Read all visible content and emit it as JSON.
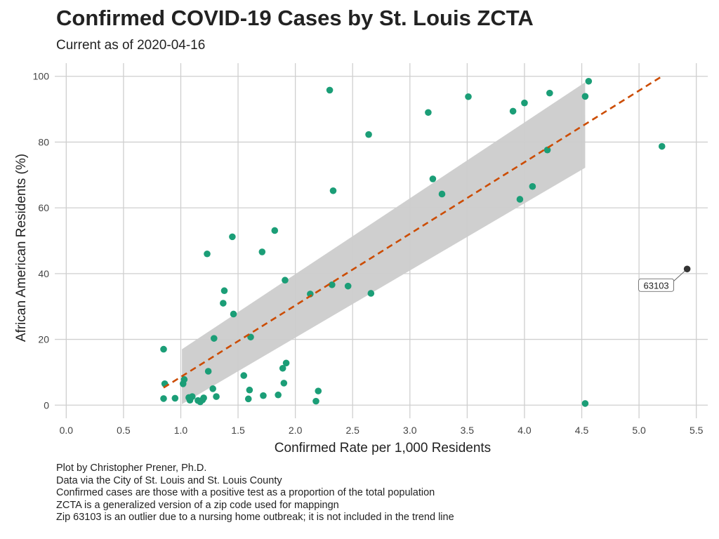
{
  "title": "Confirmed COVID-19 Cases by St. Louis ZCTA",
  "subtitle": "Current as of 2020-04-16",
  "caption_lines": [
    "Plot by Christopher Prener, Ph.D.",
    "Data via the City of St. Louis and St. Louis County",
    "Confirmed cases are those with a positive test as a proportion of the total population",
    "ZCTA is a generalized version of a zip code used for mappingn",
    "Zip 63103 is an outlier due to a nursing home outbreak; it is not included in the trend line"
  ],
  "colors": {
    "points": "#1b9e77",
    "outlier": "#333333",
    "trend": "#cc4c02",
    "band": "#cccccc",
    "grid": "#cfcfcf"
  },
  "chart_data": {
    "type": "scatter",
    "xlabel": "Confirmed Rate per 1,000 Residents",
    "ylabel": "African American Residents (%)",
    "xlim": [
      -0.1,
      5.6
    ],
    "ylim": [
      -4,
      104
    ],
    "xticks": [
      0.0,
      0.5,
      1.0,
      1.5,
      2.0,
      2.5,
      3.0,
      3.5,
      4.0,
      4.5,
      5.0,
      5.5
    ],
    "xtick_labels": [
      "0.0",
      "0.5",
      "1.0",
      "1.5",
      "2.0",
      "2.5",
      "3.0",
      "3.5",
      "4.0",
      "4.5",
      "5.0",
      "5.5"
    ],
    "yticks": [
      0,
      20,
      40,
      60,
      80,
      100
    ],
    "ytick_labels": [
      "0",
      "20",
      "40",
      "60",
      "80",
      "100"
    ],
    "grid": true,
    "points": [
      {
        "x": 0.85,
        "y": 17.0
      },
      {
        "x": 0.86,
        "y": 6.5
      },
      {
        "x": 0.85,
        "y": 2.0
      },
      {
        "x": 0.95,
        "y": 2.1
      },
      {
        "x": 1.02,
        "y": 6.5
      },
      {
        "x": 1.03,
        "y": 7.8
      },
      {
        "x": 1.07,
        "y": 2.3
      },
      {
        "x": 1.08,
        "y": 1.5
      },
      {
        "x": 1.1,
        "y": 2.6
      },
      {
        "x": 1.15,
        "y": 1.4
      },
      {
        "x": 1.17,
        "y": 1.0
      },
      {
        "x": 1.19,
        "y": 1.6
      },
      {
        "x": 1.2,
        "y": 2.2
      },
      {
        "x": 1.23,
        "y": 46.0
      },
      {
        "x": 1.24,
        "y": 10.3
      },
      {
        "x": 1.28,
        "y": 5.0
      },
      {
        "x": 1.29,
        "y": 20.3
      },
      {
        "x": 1.31,
        "y": 2.6
      },
      {
        "x": 1.37,
        "y": 31.0
      },
      {
        "x": 1.38,
        "y": 34.8
      },
      {
        "x": 1.45,
        "y": 51.2
      },
      {
        "x": 1.46,
        "y": 27.7
      },
      {
        "x": 1.55,
        "y": 9.0
      },
      {
        "x": 1.59,
        "y": 1.9
      },
      {
        "x": 1.6,
        "y": 4.6
      },
      {
        "x": 1.61,
        "y": 20.7
      },
      {
        "x": 1.71,
        "y": 46.6
      },
      {
        "x": 1.72,
        "y": 2.9
      },
      {
        "x": 1.82,
        "y": 53.1
      },
      {
        "x": 1.85,
        "y": 3.1
      },
      {
        "x": 1.89,
        "y": 11.2
      },
      {
        "x": 1.9,
        "y": 6.7
      },
      {
        "x": 1.91,
        "y": 38.0
      },
      {
        "x": 1.92,
        "y": 12.8
      },
      {
        "x": 2.13,
        "y": 33.8
      },
      {
        "x": 2.18,
        "y": 1.2
      },
      {
        "x": 2.2,
        "y": 4.3
      },
      {
        "x": 2.3,
        "y": 95.8
      },
      {
        "x": 2.32,
        "y": 36.6
      },
      {
        "x": 2.33,
        "y": 65.2
      },
      {
        "x": 2.46,
        "y": 36.2
      },
      {
        "x": 2.64,
        "y": 82.3
      },
      {
        "x": 2.66,
        "y": 34.0
      },
      {
        "x": 3.16,
        "y": 89.0
      },
      {
        "x": 3.2,
        "y": 68.8
      },
      {
        "x": 3.28,
        "y": 64.2
      },
      {
        "x": 3.51,
        "y": 93.8
      },
      {
        "x": 3.9,
        "y": 89.4
      },
      {
        "x": 3.96,
        "y": 62.6
      },
      {
        "x": 4.0,
        "y": 91.9
      },
      {
        "x": 4.07,
        "y": 66.5
      },
      {
        "x": 4.2,
        "y": 77.6
      },
      {
        "x": 4.22,
        "y": 94.9
      },
      {
        "x": 4.53,
        "y": 93.9
      },
      {
        "x": 4.53,
        "y": 0.5
      },
      {
        "x": 4.56,
        "y": 98.5
      },
      {
        "x": 5.2,
        "y": 78.7
      }
    ],
    "outlier": {
      "x": 5.42,
      "y": 41.4,
      "label": "63103",
      "label_x": 5.15,
      "label_y": 36.5
    },
    "trend_line": {
      "x": [
        0.85,
        5.2
      ],
      "y": [
        5.3,
        100.0
      ]
    },
    "confidence_band": {
      "x": [
        1.01,
        4.53
      ],
      "upper": [
        17.0,
        98.2
      ],
      "lower": [
        0.3,
        72.2
      ]
    }
  }
}
